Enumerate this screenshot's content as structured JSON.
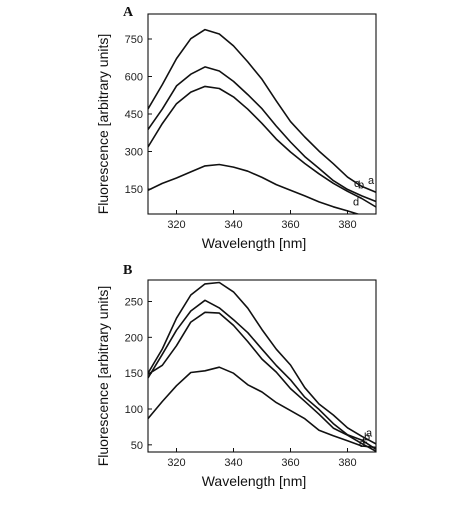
{
  "chart_data": [
    {
      "type": "line",
      "panel_label": "A",
      "xlabel": "Wavelength [nm]",
      "ylabel": "Fluorescence [arbitrary units]",
      "xlim": [
        310,
        390
      ],
      "ylim": [
        50,
        850
      ],
      "xticks": [
        320,
        340,
        360,
        380
      ],
      "yticks": [
        150,
        300,
        450,
        600,
        750
      ],
      "grid": false,
      "series": [
        {
          "name": "a",
          "x": [
            310,
            315,
            320,
            325,
            330,
            335,
            340,
            345,
            350,
            355,
            360,
            365,
            370,
            375,
            380,
            385,
            390
          ],
          "y": [
            470,
            570,
            670,
            750,
            790,
            770,
            720,
            660,
            590,
            500,
            420,
            360,
            300,
            250,
            200,
            160,
            135
          ]
        },
        {
          "name": "b",
          "x": [
            310,
            315,
            320,
            325,
            330,
            335,
            340,
            345,
            350,
            355,
            360,
            365,
            370,
            375,
            380,
            385,
            390
          ],
          "y": [
            390,
            470,
            560,
            610,
            640,
            620,
            580,
            530,
            470,
            400,
            340,
            280,
            230,
            185,
            150,
            120,
            100
          ]
        },
        {
          "name": "c",
          "x": [
            310,
            315,
            320,
            325,
            330,
            335,
            340,
            345,
            350,
            355,
            360,
            365,
            370,
            375,
            380,
            385,
            390
          ],
          "y": [
            320,
            410,
            490,
            540,
            560,
            550,
            520,
            470,
            410,
            350,
            300,
            250,
            210,
            175,
            140,
            110,
            80
          ]
        },
        {
          "name": "d",
          "x": [
            310,
            315,
            320,
            325,
            330,
            335,
            340,
            345,
            350,
            355,
            360,
            365,
            370,
            375,
            380,
            385,
            390
          ],
          "y": [
            145,
            170,
            195,
            220,
            240,
            248,
            240,
            220,
            195,
            170,
            145,
            120,
            100,
            80,
            60,
            45,
            35
          ]
        }
      ]
    },
    {
      "type": "line",
      "panel_label": "B",
      "xlabel": "Wavelength [nm]",
      "ylabel": "Fluorescence [arbitrary units]",
      "xlim": [
        310,
        390
      ],
      "ylim": [
        40,
        280
      ],
      "xticks": [
        320,
        340,
        360,
        380
      ],
      "yticks": [
        50,
        100,
        150,
        200,
        250
      ],
      "grid": false,
      "series": [
        {
          "name": "a",
          "x": [
            310,
            315,
            320,
            325,
            330,
            335,
            340,
            345,
            350,
            355,
            360,
            365,
            370,
            375,
            380,
            385,
            390
          ],
          "y": [
            150,
            185,
            225,
            260,
            275,
            275,
            265,
            240,
            210,
            185,
            160,
            130,
            108,
            90,
            75,
            62,
            50
          ]
        },
        {
          "name": "b",
          "x": [
            310,
            315,
            320,
            325,
            330,
            335,
            340,
            345,
            350,
            355,
            360,
            365,
            370,
            375,
            380,
            385,
            390
          ],
          "y": [
            145,
            175,
            210,
            238,
            250,
            242,
            225,
            205,
            185,
            160,
            140,
            118,
            98,
            80,
            65,
            55,
            45
          ]
        },
        {
          "name": "c",
          "x": [
            310,
            315,
            320,
            325,
            330,
            335,
            340,
            345,
            350,
            355,
            360,
            365,
            370,
            375,
            380,
            385,
            390
          ],
          "y": [
            148,
            160,
            190,
            220,
            235,
            235,
            215,
            195,
            170,
            150,
            130,
            110,
            92,
            75,
            62,
            52,
            42
          ]
        },
        {
          "name": "d",
          "x": [
            310,
            315,
            320,
            325,
            330,
            335,
            340,
            345,
            350,
            355,
            360,
            365,
            370,
            375,
            380,
            385,
            390
          ],
          "y": [
            85,
            112,
            132,
            150,
            155,
            157,
            150,
            135,
            122,
            110,
            98,
            85,
            72,
            62,
            55,
            50,
            45
          ]
        }
      ]
    }
  ]
}
